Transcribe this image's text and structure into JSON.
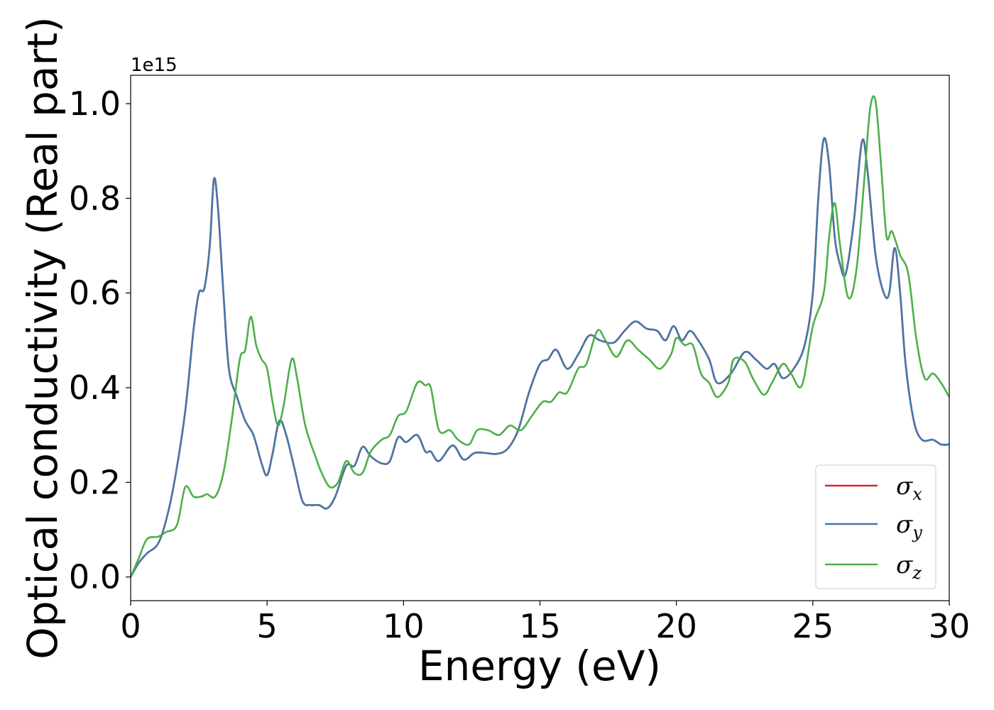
{
  "chart_data": {
    "type": "line",
    "xlabel": "Energy (eV)",
    "ylabel": "Optical conductivity (Real part)",
    "y_offset_label": "1e15",
    "y_scale": 1000000000000000.0,
    "xlim": [
      0,
      30
    ],
    "ylim": [
      -0.05,
      1.06
    ],
    "x_ticks": [
      0,
      5,
      10,
      15,
      20,
      25,
      30
    ],
    "x_tick_labels": [
      "0",
      "5",
      "10",
      "15",
      "20",
      "25",
      "30"
    ],
    "y_ticks": [
      0.0,
      0.2,
      0.4,
      0.6,
      0.8,
      1.0
    ],
    "y_tick_labels": [
      "0.0",
      "0.2",
      "0.4",
      "0.6",
      "0.8",
      "1.0"
    ],
    "grid": false,
    "legend_position": "lower-right",
    "series": [
      {
        "name": "σx",
        "symbol": "σ",
        "subscript": "x",
        "color": "#d62728",
        "points": [
          [
            0,
            0
          ],
          [
            0.3,
            0.03
          ],
          [
            0.6,
            0.05
          ],
          [
            1.0,
            0.07
          ],
          [
            1.3,
            0.12
          ],
          [
            1.6,
            0.2
          ],
          [
            2.0,
            0.35
          ],
          [
            2.3,
            0.52
          ],
          [
            2.5,
            0.6
          ],
          [
            2.7,
            0.61
          ],
          [
            2.9,
            0.7
          ],
          [
            3.05,
            0.84
          ],
          [
            3.2,
            0.78
          ],
          [
            3.4,
            0.6
          ],
          [
            3.6,
            0.44
          ],
          [
            3.9,
            0.38
          ],
          [
            4.2,
            0.33
          ],
          [
            4.5,
            0.3
          ],
          [
            4.8,
            0.24
          ],
          [
            5.0,
            0.215
          ],
          [
            5.2,
            0.26
          ],
          [
            5.45,
            0.33
          ],
          [
            5.7,
            0.3
          ],
          [
            6.0,
            0.23
          ],
          [
            6.3,
            0.16
          ],
          [
            6.6,
            0.152
          ],
          [
            6.9,
            0.152
          ],
          [
            7.2,
            0.145
          ],
          [
            7.5,
            0.17
          ],
          [
            7.9,
            0.235
          ],
          [
            8.2,
            0.235
          ],
          [
            8.5,
            0.275
          ],
          [
            8.8,
            0.255
          ],
          [
            9.2,
            0.24
          ],
          [
            9.5,
            0.245
          ],
          [
            9.8,
            0.295
          ],
          [
            10.1,
            0.285
          ],
          [
            10.5,
            0.3
          ],
          [
            10.8,
            0.265
          ],
          [
            11.0,
            0.265
          ],
          [
            11.3,
            0.245
          ],
          [
            11.8,
            0.278
          ],
          [
            12.2,
            0.248
          ],
          [
            12.6,
            0.262
          ],
          [
            13.0,
            0.262
          ],
          [
            13.4,
            0.26
          ],
          [
            13.8,
            0.27
          ],
          [
            14.2,
            0.31
          ],
          [
            14.6,
            0.39
          ],
          [
            15.0,
            0.45
          ],
          [
            15.3,
            0.46
          ],
          [
            15.6,
            0.48
          ],
          [
            16.0,
            0.44
          ],
          [
            16.4,
            0.47
          ],
          [
            16.8,
            0.51
          ],
          [
            17.2,
            0.5
          ],
          [
            17.7,
            0.495
          ],
          [
            18.1,
            0.52
          ],
          [
            18.5,
            0.54
          ],
          [
            18.9,
            0.525
          ],
          [
            19.3,
            0.52
          ],
          [
            19.6,
            0.5
          ],
          [
            19.9,
            0.53
          ],
          [
            20.2,
            0.5
          ],
          [
            20.5,
            0.52
          ],
          [
            20.8,
            0.5
          ],
          [
            21.2,
            0.46
          ],
          [
            21.5,
            0.41
          ],
          [
            22.0,
            0.43
          ],
          [
            22.5,
            0.475
          ],
          [
            22.9,
            0.46
          ],
          [
            23.3,
            0.44
          ],
          [
            23.6,
            0.45
          ],
          [
            23.9,
            0.42
          ],
          [
            24.3,
            0.44
          ],
          [
            24.7,
            0.49
          ],
          [
            25.0,
            0.6
          ],
          [
            25.2,
            0.8
          ],
          [
            25.4,
            0.925
          ],
          [
            25.6,
            0.87
          ],
          [
            25.8,
            0.72
          ],
          [
            26.0,
            0.66
          ],
          [
            26.2,
            0.64
          ],
          [
            26.5,
            0.75
          ],
          [
            26.8,
            0.92
          ],
          [
            27.0,
            0.86
          ],
          [
            27.3,
            0.68
          ],
          [
            27.6,
            0.6
          ],
          [
            27.8,
            0.6
          ],
          [
            28.0,
            0.695
          ],
          [
            28.2,
            0.6
          ],
          [
            28.4,
            0.45
          ],
          [
            28.7,
            0.33
          ],
          [
            29.0,
            0.29
          ],
          [
            29.4,
            0.29
          ],
          [
            29.7,
            0.28
          ],
          [
            30,
            0.28
          ]
        ]
      },
      {
        "name": "σy",
        "symbol": "σ",
        "subscript": "y",
        "color": "#4677a8",
        "points": [
          [
            0,
            0
          ],
          [
            0.3,
            0.03
          ],
          [
            0.6,
            0.05
          ],
          [
            1.0,
            0.07
          ],
          [
            1.3,
            0.12
          ],
          [
            1.6,
            0.2
          ],
          [
            2.0,
            0.35
          ],
          [
            2.3,
            0.52
          ],
          [
            2.5,
            0.6
          ],
          [
            2.7,
            0.61
          ],
          [
            2.9,
            0.7
          ],
          [
            3.05,
            0.84
          ],
          [
            3.2,
            0.78
          ],
          [
            3.4,
            0.6
          ],
          [
            3.6,
            0.44
          ],
          [
            3.9,
            0.38
          ],
          [
            4.2,
            0.33
          ],
          [
            4.5,
            0.3
          ],
          [
            4.8,
            0.24
          ],
          [
            5.0,
            0.215
          ],
          [
            5.2,
            0.26
          ],
          [
            5.45,
            0.33
          ],
          [
            5.7,
            0.3
          ],
          [
            6.0,
            0.23
          ],
          [
            6.3,
            0.16
          ],
          [
            6.6,
            0.152
          ],
          [
            6.9,
            0.152
          ],
          [
            7.2,
            0.145
          ],
          [
            7.5,
            0.17
          ],
          [
            7.9,
            0.235
          ],
          [
            8.2,
            0.235
          ],
          [
            8.5,
            0.275
          ],
          [
            8.8,
            0.255
          ],
          [
            9.2,
            0.24
          ],
          [
            9.5,
            0.245
          ],
          [
            9.8,
            0.295
          ],
          [
            10.1,
            0.285
          ],
          [
            10.5,
            0.3
          ],
          [
            10.8,
            0.265
          ],
          [
            11.0,
            0.265
          ],
          [
            11.3,
            0.245
          ],
          [
            11.8,
            0.278
          ],
          [
            12.2,
            0.248
          ],
          [
            12.6,
            0.262
          ],
          [
            13.0,
            0.262
          ],
          [
            13.4,
            0.26
          ],
          [
            13.8,
            0.27
          ],
          [
            14.2,
            0.31
          ],
          [
            14.6,
            0.39
          ],
          [
            15.0,
            0.45
          ],
          [
            15.3,
            0.46
          ],
          [
            15.6,
            0.48
          ],
          [
            16.0,
            0.44
          ],
          [
            16.4,
            0.47
          ],
          [
            16.8,
            0.51
          ],
          [
            17.2,
            0.5
          ],
          [
            17.7,
            0.495
          ],
          [
            18.1,
            0.52
          ],
          [
            18.5,
            0.54
          ],
          [
            18.9,
            0.525
          ],
          [
            19.3,
            0.52
          ],
          [
            19.6,
            0.5
          ],
          [
            19.9,
            0.53
          ],
          [
            20.2,
            0.5
          ],
          [
            20.5,
            0.52
          ],
          [
            20.8,
            0.5
          ],
          [
            21.2,
            0.46
          ],
          [
            21.5,
            0.41
          ],
          [
            22.0,
            0.43
          ],
          [
            22.5,
            0.475
          ],
          [
            22.9,
            0.46
          ],
          [
            23.3,
            0.44
          ],
          [
            23.6,
            0.45
          ],
          [
            23.9,
            0.42
          ],
          [
            24.3,
            0.44
          ],
          [
            24.7,
            0.49
          ],
          [
            25.0,
            0.6
          ],
          [
            25.2,
            0.8
          ],
          [
            25.4,
            0.925
          ],
          [
            25.6,
            0.87
          ],
          [
            25.8,
            0.72
          ],
          [
            26.0,
            0.66
          ],
          [
            26.2,
            0.64
          ],
          [
            26.5,
            0.75
          ],
          [
            26.8,
            0.92
          ],
          [
            27.0,
            0.86
          ],
          [
            27.3,
            0.68
          ],
          [
            27.6,
            0.6
          ],
          [
            27.8,
            0.6
          ],
          [
            28.0,
            0.695
          ],
          [
            28.2,
            0.6
          ],
          [
            28.4,
            0.45
          ],
          [
            28.7,
            0.33
          ],
          [
            29.0,
            0.29
          ],
          [
            29.4,
            0.29
          ],
          [
            29.7,
            0.28
          ],
          [
            30,
            0.28
          ]
        ]
      },
      {
        "name": "σz",
        "symbol": "σ",
        "subscript": "z",
        "color": "#4daf4a",
        "points": [
          [
            0,
            0
          ],
          [
            0.3,
            0.04
          ],
          [
            0.6,
            0.08
          ],
          [
            1.0,
            0.085
          ],
          [
            1.3,
            0.095
          ],
          [
            1.7,
            0.11
          ],
          [
            2.0,
            0.19
          ],
          [
            2.3,
            0.17
          ],
          [
            2.6,
            0.17
          ],
          [
            2.8,
            0.175
          ],
          [
            3.1,
            0.17
          ],
          [
            3.4,
            0.22
          ],
          [
            3.7,
            0.33
          ],
          [
            4.0,
            0.46
          ],
          [
            4.2,
            0.48
          ],
          [
            4.4,
            0.55
          ],
          [
            4.6,
            0.49
          ],
          [
            4.8,
            0.46
          ],
          [
            5.0,
            0.44
          ],
          [
            5.2,
            0.37
          ],
          [
            5.4,
            0.32
          ],
          [
            5.6,
            0.36
          ],
          [
            5.9,
            0.46
          ],
          [
            6.1,
            0.42
          ],
          [
            6.4,
            0.32
          ],
          [
            6.8,
            0.25
          ],
          [
            7.0,
            0.22
          ],
          [
            7.3,
            0.19
          ],
          [
            7.6,
            0.2
          ],
          [
            7.9,
            0.245
          ],
          [
            8.2,
            0.22
          ],
          [
            8.5,
            0.22
          ],
          [
            8.8,
            0.265
          ],
          [
            9.2,
            0.29
          ],
          [
            9.5,
            0.3
          ],
          [
            9.8,
            0.34
          ],
          [
            10.1,
            0.35
          ],
          [
            10.5,
            0.41
          ],
          [
            10.8,
            0.405
          ],
          [
            11.0,
            0.4
          ],
          [
            11.3,
            0.31
          ],
          [
            11.7,
            0.31
          ],
          [
            12.0,
            0.29
          ],
          [
            12.4,
            0.28
          ],
          [
            12.7,
            0.31
          ],
          [
            13.1,
            0.31
          ],
          [
            13.5,
            0.3
          ],
          [
            13.9,
            0.32
          ],
          [
            14.3,
            0.31
          ],
          [
            14.7,
            0.34
          ],
          [
            15.1,
            0.37
          ],
          [
            15.4,
            0.37
          ],
          [
            15.7,
            0.39
          ],
          [
            16.0,
            0.39
          ],
          [
            16.4,
            0.44
          ],
          [
            16.7,
            0.45
          ],
          [
            17.1,
            0.52
          ],
          [
            17.4,
            0.5
          ],
          [
            17.8,
            0.465
          ],
          [
            18.2,
            0.5
          ],
          [
            18.6,
            0.48
          ],
          [
            19.0,
            0.46
          ],
          [
            19.4,
            0.44
          ],
          [
            19.8,
            0.47
          ],
          [
            20.0,
            0.505
          ],
          [
            20.3,
            0.49
          ],
          [
            20.6,
            0.49
          ],
          [
            20.9,
            0.43
          ],
          [
            21.2,
            0.41
          ],
          [
            21.5,
            0.38
          ],
          [
            21.9,
            0.41
          ],
          [
            22.1,
            0.46
          ],
          [
            22.5,
            0.455
          ],
          [
            22.8,
            0.42
          ],
          [
            23.2,
            0.385
          ],
          [
            23.5,
            0.41
          ],
          [
            23.9,
            0.45
          ],
          [
            24.2,
            0.43
          ],
          [
            24.6,
            0.405
          ],
          [
            25.0,
            0.53
          ],
          [
            25.4,
            0.6
          ],
          [
            25.6,
            0.72
          ],
          [
            25.8,
            0.79
          ],
          [
            26.0,
            0.7
          ],
          [
            26.3,
            0.59
          ],
          [
            26.6,
            0.65
          ],
          [
            26.9,
            0.85
          ],
          [
            27.1,
            0.99
          ],
          [
            27.3,
            1.005
          ],
          [
            27.5,
            0.87
          ],
          [
            27.7,
            0.72
          ],
          [
            27.9,
            0.73
          ],
          [
            28.2,
            0.68
          ],
          [
            28.5,
            0.64
          ],
          [
            28.8,
            0.5
          ],
          [
            29.1,
            0.42
          ],
          [
            29.4,
            0.43
          ],
          [
            29.7,
            0.41
          ],
          [
            30,
            0.38
          ]
        ]
      }
    ]
  }
}
